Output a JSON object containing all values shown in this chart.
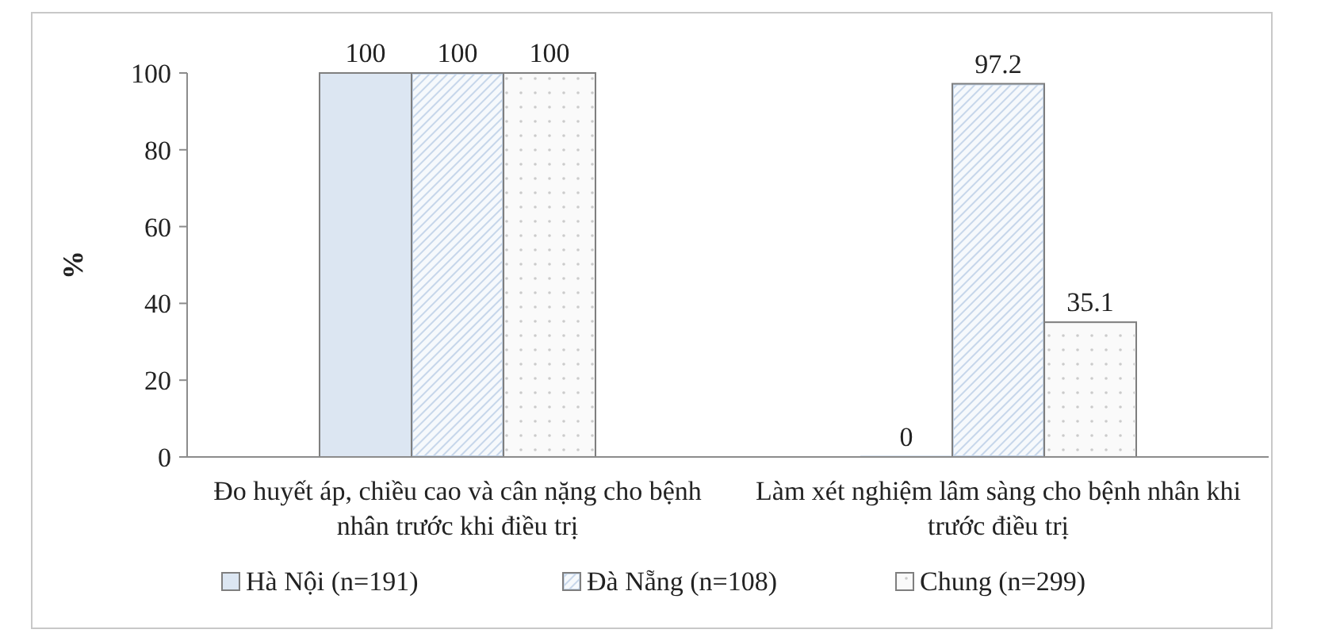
{
  "chart_data": {
    "type": "bar",
    "ylabel": "%",
    "categories": [
      "Đo huyết áp, chiều cao và cân nặng cho bệnh nhân trước khi điều trị",
      "Làm xét nghiệm lâm sàng cho bệnh nhân khi trước điều trị"
    ],
    "series": [
      {
        "name": "Hà Nội (n=191)",
        "color": "#dce6f2",
        "values": [
          100,
          0
        ]
      },
      {
        "name": "Đà Nẵng (n=108)",
        "color": "#c6d6ea",
        "values": [
          100,
          97.2
        ]
      },
      {
        "name": "Chung (n=299)",
        "color": "#f4f4f4",
        "values": [
          100,
          35.1
        ]
      }
    ],
    "ylim": [
      0,
      100
    ],
    "yticks": [
      0,
      20,
      40,
      60,
      80,
      100
    ],
    "grid": false,
    "legend": "bottom",
    "data_labels": true
  }
}
